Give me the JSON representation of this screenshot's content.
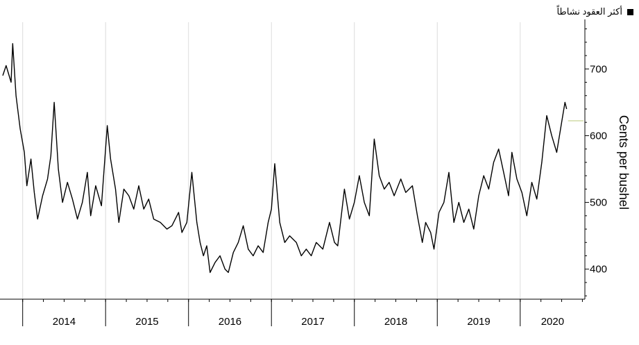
{
  "legend": {
    "label": "أكثر العقود نشاطاً"
  },
  "chart_data": {
    "type": "line",
    "ylabel": "Cents per bushel",
    "xlabel": "",
    "title": "",
    "y_ticks": [
      400,
      500,
      600,
      700
    ],
    "ylim": [
      355,
      770
    ],
    "x_ticks": [
      "2014",
      "2015",
      "2016",
      "2017",
      "2018",
      "2019",
      "2020"
    ],
    "xlim": [
      2013.76,
      2020.78
    ],
    "grid": "vertical",
    "legend_position": "top-right",
    "series": [
      {
        "name": "أكثر العقود نشاطاً",
        "color": "#000000",
        "points": [
          [
            2013.76,
            690
          ],
          [
            2013.8,
            705
          ],
          [
            2013.86,
            680
          ],
          [
            2013.88,
            738
          ],
          [
            2013.92,
            660
          ],
          [
            2013.97,
            610
          ],
          [
            2014.02,
            575
          ],
          [
            2014.05,
            525
          ],
          [
            2014.1,
            565
          ],
          [
            2014.14,
            515
          ],
          [
            2014.18,
            475
          ],
          [
            2014.24,
            510
          ],
          [
            2014.3,
            535
          ],
          [
            2014.34,
            570
          ],
          [
            2014.38,
            650
          ],
          [
            2014.43,
            550
          ],
          [
            2014.48,
            500
          ],
          [
            2014.54,
            530
          ],
          [
            2014.6,
            505
          ],
          [
            2014.66,
            475
          ],
          [
            2014.72,
            500
          ],
          [
            2014.78,
            545
          ],
          [
            2014.82,
            480
          ],
          [
            2014.88,
            525
          ],
          [
            2014.95,
            495
          ],
          [
            2015.02,
            615
          ],
          [
            2015.06,
            565
          ],
          [
            2015.12,
            520
          ],
          [
            2015.16,
            470
          ],
          [
            2015.22,
            520
          ],
          [
            2015.28,
            510
          ],
          [
            2015.34,
            490
          ],
          [
            2015.4,
            525
          ],
          [
            2015.46,
            490
          ],
          [
            2015.52,
            505
          ],
          [
            2015.58,
            475
          ],
          [
            2015.66,
            470
          ],
          [
            2015.74,
            460
          ],
          [
            2015.8,
            465
          ],
          [
            2015.88,
            485
          ],
          [
            2015.92,
            455
          ],
          [
            2015.98,
            470
          ],
          [
            2016.04,
            545
          ],
          [
            2016.1,
            470
          ],
          [
            2016.14,
            440
          ],
          [
            2016.18,
            420
          ],
          [
            2016.22,
            435
          ],
          [
            2016.26,
            395
          ],
          [
            2016.32,
            410
          ],
          [
            2016.38,
            420
          ],
          [
            2016.44,
            400
          ],
          [
            2016.48,
            395
          ],
          [
            2016.54,
            425
          ],
          [
            2016.6,
            440
          ],
          [
            2016.66,
            465
          ],
          [
            2016.72,
            430
          ],
          [
            2016.78,
            420
          ],
          [
            2016.84,
            435
          ],
          [
            2016.9,
            425
          ],
          [
            2016.96,
            470
          ],
          [
            2017.0,
            490
          ],
          [
            2017.04,
            558
          ],
          [
            2017.1,
            470
          ],
          [
            2017.16,
            440
          ],
          [
            2017.22,
            450
          ],
          [
            2017.3,
            440
          ],
          [
            2017.36,
            420
          ],
          [
            2017.42,
            430
          ],
          [
            2017.48,
            420
          ],
          [
            2017.54,
            440
          ],
          [
            2017.62,
            430
          ],
          [
            2017.7,
            470
          ],
          [
            2017.76,
            440
          ],
          [
            2017.8,
            435
          ],
          [
            2017.88,
            520
          ],
          [
            2017.94,
            475
          ],
          [
            2018.0,
            500
          ],
          [
            2018.06,
            540
          ],
          [
            2018.12,
            500
          ],
          [
            2018.18,
            480
          ],
          [
            2018.24,
            595
          ],
          [
            2018.3,
            540
          ],
          [
            2018.36,
            520
          ],
          [
            2018.42,
            530
          ],
          [
            2018.48,
            510
          ],
          [
            2018.56,
            535
          ],
          [
            2018.62,
            515
          ],
          [
            2018.7,
            525
          ],
          [
            2018.76,
            480
          ],
          [
            2018.82,
            440
          ],
          [
            2018.86,
            470
          ],
          [
            2018.92,
            455
          ],
          [
            2018.96,
            430
          ],
          [
            2019.02,
            485
          ],
          [
            2019.08,
            500
          ],
          [
            2019.14,
            545
          ],
          [
            2019.2,
            470
          ],
          [
            2019.26,
            500
          ],
          [
            2019.32,
            470
          ],
          [
            2019.38,
            490
          ],
          [
            2019.44,
            460
          ],
          [
            2019.5,
            510
          ],
          [
            2019.56,
            540
          ],
          [
            2019.62,
            520
          ],
          [
            2019.68,
            560
          ],
          [
            2019.74,
            580
          ],
          [
            2019.8,
            545
          ],
          [
            2019.86,
            510
          ],
          [
            2019.9,
            575
          ],
          [
            2019.96,
            535
          ],
          [
            2020.02,
            515
          ],
          [
            2020.08,
            480
          ],
          [
            2020.14,
            530
          ],
          [
            2020.2,
            505
          ],
          [
            2020.26,
            560
          ],
          [
            2020.32,
            630
          ],
          [
            2020.38,
            600
          ],
          [
            2020.44,
            575
          ],
          [
            2020.5,
            620
          ],
          [
            2020.54,
            650
          ],
          [
            2020.56,
            640
          ]
        ]
      }
    ]
  }
}
